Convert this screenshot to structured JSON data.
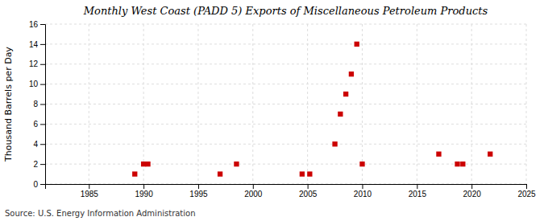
{
  "chart_data": {
    "type": "scatter",
    "title": "Monthly West Coast (PADD 5) Exports of Miscellaneous Petroleum Products",
    "ylabel": "Thousand Barrels per Day",
    "source": "Source: U.S. Energy Information Administration",
    "x": [
      1989.2,
      1990.0,
      1990.4,
      1997.0,
      1998.5,
      2004.5,
      2005.2,
      2007.5,
      2008.0,
      2008.5,
      2009.0,
      2009.5,
      2010.0,
      2017.0,
      2018.7,
      2019.2,
      2021.7
    ],
    "values": [
      1.0,
      2.0,
      2.0,
      1.0,
      2.0,
      1.0,
      1.0,
      4.0,
      7.0,
      9.0,
      11.0,
      14.0,
      2.0,
      3.0,
      2.0,
      2.0,
      3.0
    ],
    "color": "#cc0000",
    "marker": "square",
    "xlim": [
      1981,
      2025
    ],
    "ylim": [
      0,
      16
    ],
    "xticks": [
      1985,
      1990,
      1995,
      2000,
      2005,
      2010,
      2015,
      2020,
      2025
    ],
    "yticks": [
      0,
      2,
      4,
      6,
      8,
      10,
      12,
      14,
      16
    ],
    "grid": true
  }
}
